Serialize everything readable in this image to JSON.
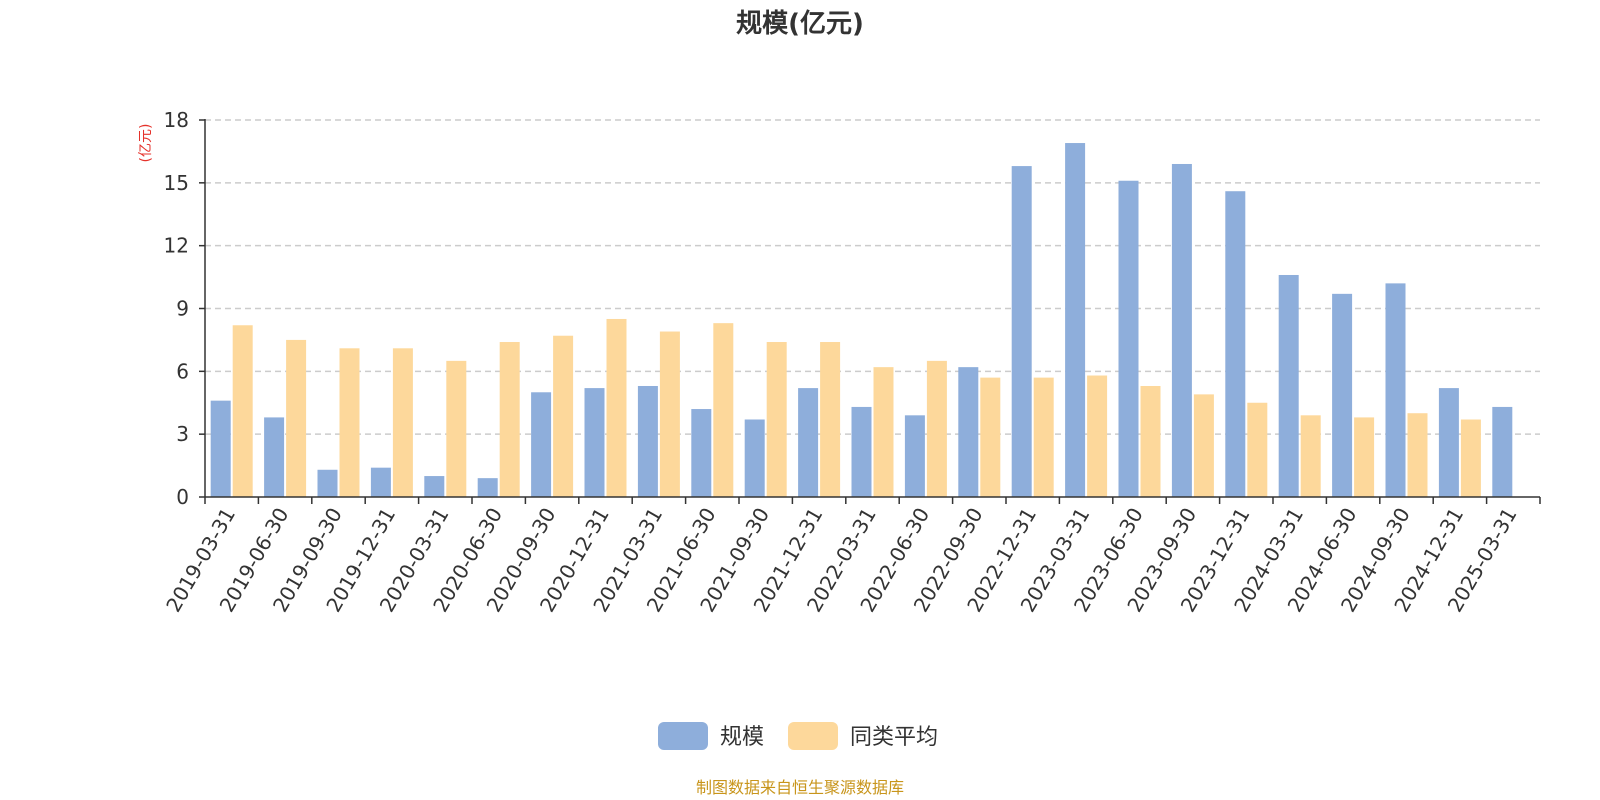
{
  "chart_data": {
    "type": "bar",
    "title": "规模(亿元)",
    "ylabel": "(亿元)",
    "ylim": [
      0,
      18
    ],
    "yticks": [
      0,
      3,
      6,
      9,
      12,
      15,
      18
    ],
    "categories": [
      "2019-03-31",
      "2019-06-30",
      "2019-09-30",
      "2019-12-31",
      "2020-03-31",
      "2020-06-30",
      "2020-09-30",
      "2020-12-31",
      "2021-03-31",
      "2021-06-30",
      "2021-09-30",
      "2021-12-31",
      "2022-03-31",
      "2022-06-30",
      "2022-09-30",
      "2022-12-31",
      "2023-03-31",
      "2023-06-30",
      "2023-09-30",
      "2023-12-31",
      "2024-03-31",
      "2024-06-30",
      "2024-09-30",
      "2024-12-31",
      "2025-03-31"
    ],
    "series": [
      {
        "name": "规模",
        "color": "#8eaedb",
        "values": [
          4.6,
          3.8,
          1.3,
          1.4,
          1.0,
          0.9,
          5.0,
          5.2,
          5.3,
          4.2,
          3.7,
          5.2,
          4.3,
          3.9,
          6.2,
          15.8,
          16.9,
          15.1,
          15.9,
          14.6,
          10.6,
          9.7,
          10.2,
          5.2,
          4.3
        ]
      },
      {
        "name": "同类平均",
        "color": "#fdd89b",
        "values": [
          8.2,
          7.5,
          7.1,
          7.1,
          6.5,
          7.4,
          7.7,
          8.5,
          7.9,
          8.3,
          7.4,
          7.4,
          6.2,
          6.5,
          5.7,
          5.7,
          5.8,
          5.3,
          4.9,
          4.5,
          3.9,
          3.8,
          4.0,
          3.7,
          null
        ]
      }
    ],
    "grid": true,
    "legend_position": "bottom-center",
    "unit_color": "#e5322b"
  },
  "source_text": "制图数据来自恒生聚源数据库",
  "source_color": "#c8951b"
}
